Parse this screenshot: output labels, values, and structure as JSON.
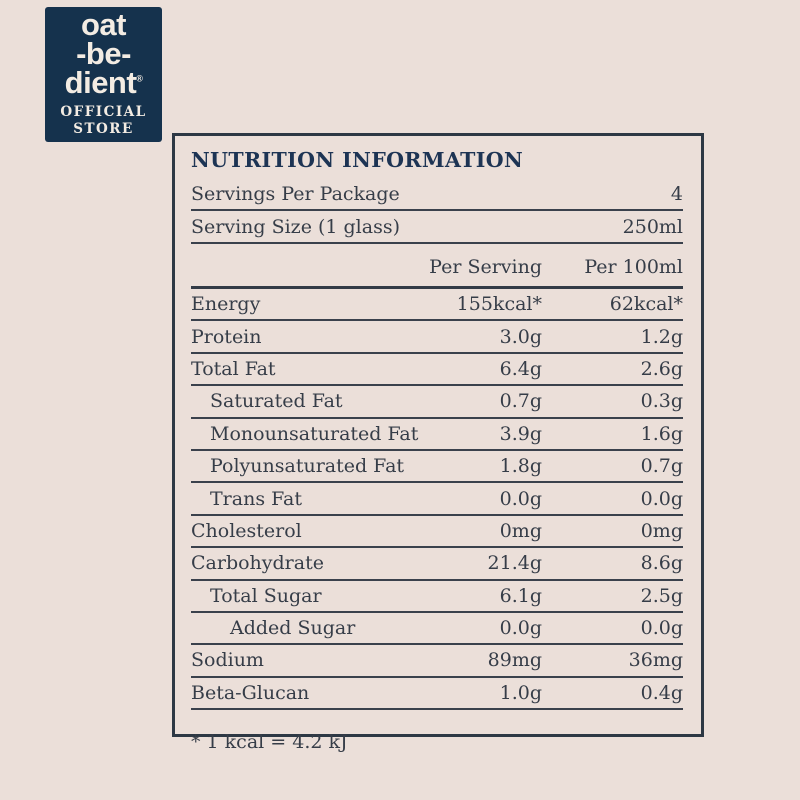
{
  "logo": {
    "word1": "oat",
    "word2": "-be-",
    "word3": "dient",
    "trademark": "®",
    "subline1": "OFFICIAL",
    "subline2": "STORE"
  },
  "colors": {
    "page_background": "#ebdfd9",
    "logo_background": "#15324d",
    "logo_text": "#f3ece3",
    "panel_border": "#2d3844",
    "title_text": "#1d3454",
    "body_text": "#363d48"
  },
  "nutrition": {
    "title": "NUTRITION INFORMATION",
    "meta_rows": [
      {
        "label": "Servings Per Package",
        "value": "4"
      },
      {
        "label": "Serving Size (1 glass)",
        "value": "250ml"
      }
    ],
    "columns": {
      "per_serving": "Per Serving",
      "per_100ml": "Per 100ml"
    },
    "rows": [
      {
        "label": "Energy",
        "per_serving": "155kcal*",
        "per_100ml": "62kcal*",
        "indent": 0
      },
      {
        "label": "Protein",
        "per_serving": "3.0g",
        "per_100ml": "1.2g",
        "indent": 0
      },
      {
        "label": "Total Fat",
        "per_serving": "6.4g",
        "per_100ml": "2.6g",
        "indent": 0
      },
      {
        "label": "Saturated Fat",
        "per_serving": "0.7g",
        "per_100ml": "0.3g",
        "indent": 1
      },
      {
        "label": "Monounsaturated Fat",
        "per_serving": "3.9g",
        "per_100ml": "1.6g",
        "indent": 1
      },
      {
        "label": "Polyunsaturated Fat",
        "per_serving": "1.8g",
        "per_100ml": "0.7g",
        "indent": 1
      },
      {
        "label": "Trans Fat",
        "per_serving": "0.0g",
        "per_100ml": "0.0g",
        "indent": 1
      },
      {
        "label": "Cholesterol",
        "per_serving": "0mg",
        "per_100ml": "0mg",
        "indent": 0
      },
      {
        "label": "Carbohydrate",
        "per_serving": "21.4g",
        "per_100ml": "8.6g",
        "indent": 0
      },
      {
        "label": "Total Sugar",
        "per_serving": "6.1g",
        "per_100ml": "2.5g",
        "indent": 1
      },
      {
        "label": "Added Sugar",
        "per_serving": "0.0g",
        "per_100ml": "0.0g",
        "indent": 2
      },
      {
        "label": "Sodium",
        "per_serving": "89mg",
        "per_100ml": "36mg",
        "indent": 0
      },
      {
        "label": "Beta-Glucan",
        "per_serving": "1.0g",
        "per_100ml": "0.4g",
        "indent": 0
      }
    ],
    "footnote": "* 1 kcal = 4.2 kJ"
  }
}
